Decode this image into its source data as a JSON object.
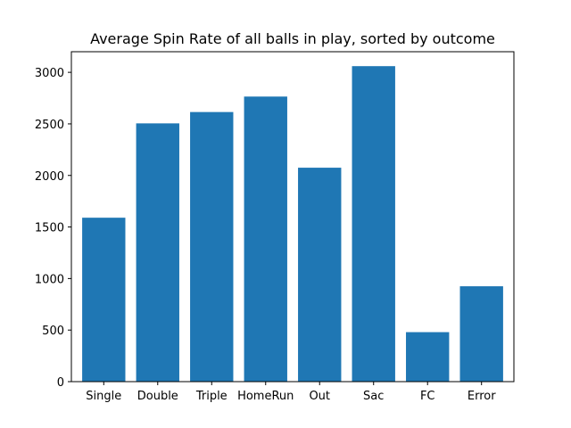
{
  "chart_data": {
    "type": "bar",
    "title": "Average Spin Rate of all balls in play, sorted by outcome",
    "xlabel": "",
    "ylabel": "",
    "categories": [
      "Single",
      "Double",
      "Triple",
      "HomeRun",
      "Out",
      "Sac",
      "FC",
      "Error"
    ],
    "values": [
      1590,
      2505,
      2615,
      2765,
      2075,
      3060,
      480,
      925
    ],
    "ylim": [
      0,
      3200
    ],
    "yticks": [
      0,
      500,
      1000,
      1500,
      2000,
      2500,
      3000
    ],
    "bar_color": "#1f77b4",
    "grid": false
  }
}
